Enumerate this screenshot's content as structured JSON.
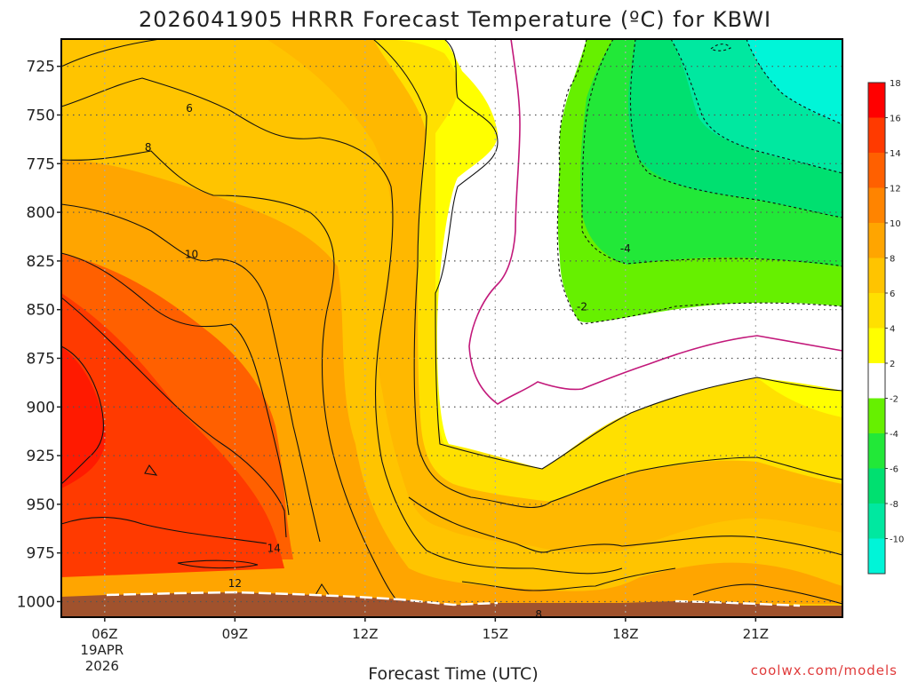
{
  "chart_data": {
    "type": "heatmap",
    "title": "2026041905 HRRR Forecast Temperature (ºC) for KBWI",
    "xlabel": "Forecast Time (UTC)",
    "ylabel": "",
    "x_ticks": [
      {
        "label": "06Z",
        "hour": 6,
        "sub": [
          "19APR",
          "2026"
        ]
      },
      {
        "label": "09Z",
        "hour": 9
      },
      {
        "label": "12Z",
        "hour": 12
      },
      {
        "label": "15Z",
        "hour": 15
      },
      {
        "label": "18Z",
        "hour": 18
      },
      {
        "label": "21Z",
        "hour": 21
      }
    ],
    "xlim": [
      5,
      23
    ],
    "y_ticks": [
      725,
      750,
      775,
      800,
      825,
      850,
      875,
      900,
      925,
      950,
      975,
      1000
    ],
    "ylim": [
      711,
      1008
    ],
    "colorbar": {
      "levels": [
        -10,
        -8,
        -6,
        -4,
        -2,
        2,
        4,
        6,
        8,
        10,
        12,
        14,
        16,
        18
      ],
      "tick_labels": [
        "-10",
        "-8",
        "-6",
        "-4",
        "-2",
        "2",
        "4",
        "6",
        "8",
        "10",
        "12",
        "14",
        "16",
        "18"
      ],
      "colors": [
        "#00f5d8",
        "#00e8a0",
        "#00e070",
        "#22e838",
        "#66f000",
        "#ffffff",
        "#ffff00",
        "#ffe000",
        "#ffc400",
        "#ffa500",
        "#ff8400",
        "#ff6000",
        "#ff3a00",
        "#ff0000"
      ]
    },
    "contour_labels": [
      {
        "text": "6",
        "x": 7.95,
        "p": 748
      },
      {
        "text": "8",
        "x": 7.0,
        "p": 768
      },
      {
        "text": "10",
        "x": 8.0,
        "p": 823
      },
      {
        "text": "14",
        "x": 9.9,
        "p": 974
      },
      {
        "text": "12",
        "x": 9.0,
        "p": 992
      },
      {
        "text": "8",
        "x": 16.0,
        "p": 1008
      },
      {
        "text": "-4",
        "x": 18.0,
        "p": 820
      },
      {
        "text": "-2",
        "x": 17.0,
        "p": 850
      }
    ]
  },
  "credit": "coolwx.com/models"
}
